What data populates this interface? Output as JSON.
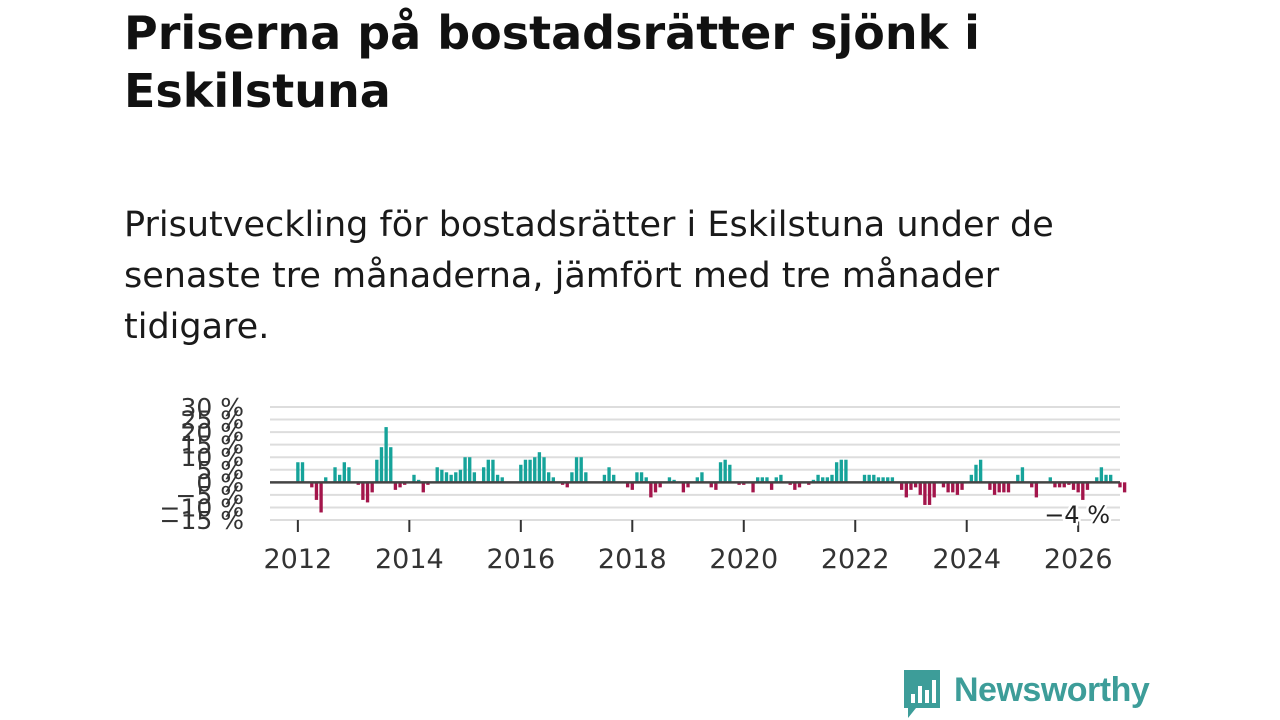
{
  "title": "Priserna på bostadsrätter sjönk i Eskilstuna",
  "subtitle": "Prisutveckling för bostadsrätter i Eskilstuna under de senaste tre månaderna, jämfört med tre månader tidigare.",
  "brand": {
    "name": "Newsworthy",
    "logo_icon": "bar-chart-speech-bubble-icon"
  },
  "colors": {
    "positive": "#16a39a",
    "negative": "#a3154b",
    "grid": "#dddddd",
    "zero_line": "#444444",
    "brand": "#3d9d99"
  },
  "chart_data": {
    "type": "bar",
    "title": "Prisutveckling för bostadsrätter i Eskilstuna",
    "xlabel": "",
    "ylabel": "",
    "unit": "%",
    "ylim": [
      -15,
      30
    ],
    "y_ticks": [
      -15,
      -10,
      -5,
      0,
      5,
      10,
      15,
      20,
      25,
      30
    ],
    "y_tick_labels": [
      "−15 %",
      "−10 %",
      "−5 %",
      "0 %",
      "5 %",
      "10 %",
      "15 %",
      "20 %",
      "25 %",
      "30 %"
    ],
    "x_ticks": [
      2012,
      2014,
      2016,
      2018,
      2020,
      2022,
      2024,
      2026
    ],
    "x_tick_labels": [
      "2012",
      "2014",
      "2016",
      "2018",
      "2020",
      "2022",
      "2024",
      "2026"
    ],
    "x_range": [
      2011.5,
      2026.75
    ],
    "x_start": 2012.0,
    "x_step": 0.08333,
    "last_value_label": "−4 %",
    "values": [
      8,
      8,
      0,
      -2,
      -7,
      -12,
      2,
      0,
      6,
      3,
      8,
      6,
      0,
      -1,
      -7,
      -8,
      -4,
      9,
      14,
      22,
      14,
      -3,
      -2,
      -1,
      0,
      3,
      1,
      -4,
      -1,
      0,
      6,
      5,
      4,
      3,
      4,
      5,
      10,
      10,
      4,
      0,
      6,
      9,
      9,
      3,
      2,
      0,
      0,
      0,
      7,
      9,
      9,
      10,
      12,
      10,
      4,
      2,
      0,
      -1,
      -2,
      4,
      10,
      10,
      4,
      0,
      0,
      0,
      3,
      6,
      3,
      0,
      0,
      -2,
      -3,
      4,
      4,
      2,
      -6,
      -4,
      -2,
      0,
      2,
      1,
      0,
      -4,
      -2,
      0,
      2,
      4,
      0,
      -2,
      -3,
      8,
      9,
      7,
      0,
      -1,
      -1,
      0,
      -4,
      2,
      2,
      2,
      -3,
      2,
      3,
      0,
      -1,
      -3,
      -2,
      0,
      -1,
      1,
      3,
      2,
      2,
      3,
      8,
      9,
      9,
      0,
      0,
      0,
      3,
      3,
      3,
      2,
      2,
      2,
      2,
      0,
      -3,
      -6,
      -3,
      -2,
      -5,
      -9,
      -9,
      -6,
      0,
      -2,
      -4,
      -4,
      -5,
      -3,
      0,
      3,
      7,
      9,
      0,
      -3,
      -5,
      -4,
      -4,
      -4,
      0,
      3,
      6,
      0,
      -2,
      -6,
      0,
      0,
      2,
      -2,
      -2,
      -2,
      -1,
      -3,
      -4,
      -7,
      -3,
      0,
      2,
      6,
      3,
      3,
      0,
      -2,
      -4
    ]
  }
}
